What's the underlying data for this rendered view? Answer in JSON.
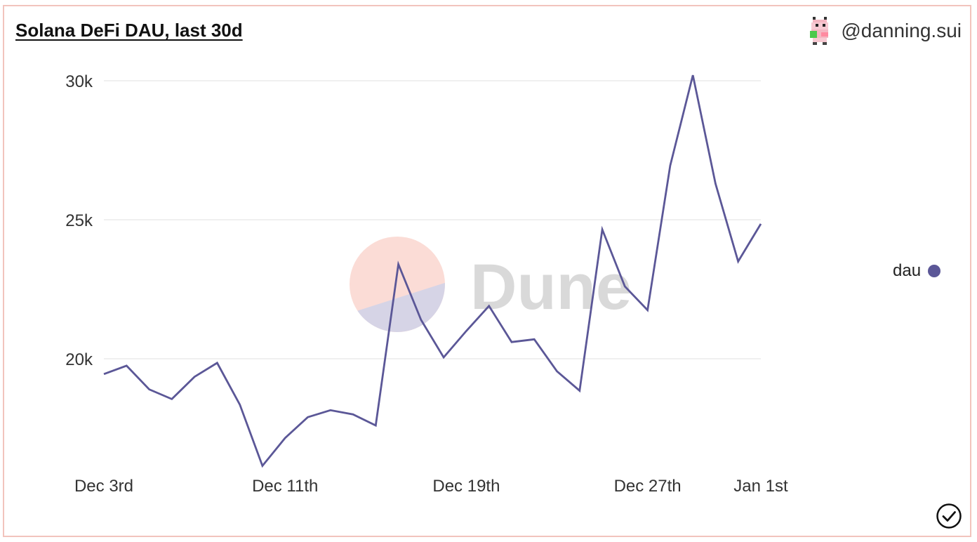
{
  "header": {
    "title": "Solana DeFi DAU, last 30d",
    "author": "@danning.sui"
  },
  "watermark": {
    "text": "Dune"
  },
  "legend": {
    "label": "dau",
    "color": "#5b5797"
  },
  "icons": {
    "avatar": "pixel-avatar-icon",
    "status": "check-circle-icon"
  },
  "chart_data": {
    "type": "line",
    "x_ticks": [
      "Dec 3rd",
      "Dec 11th",
      "Dec 19th",
      "Dec 27th",
      "Jan 1st"
    ],
    "y_ticks": [
      "20k",
      "25k",
      "30k"
    ],
    "y_tick_values": [
      20000,
      25000,
      30000
    ],
    "ylim": [
      15000,
      30500
    ],
    "grid": true,
    "legend_position": "right",
    "series": [
      {
        "name": "dau",
        "color": "#5b5797",
        "values": [
          19450,
          19750,
          18900,
          18550,
          19350,
          19850,
          18350,
          16150,
          17150,
          17900,
          18150,
          18000,
          17600,
          23400,
          21400,
          20050,
          21000,
          21900,
          20600,
          20700,
          19550,
          18850,
          24650,
          22600,
          21750,
          26950,
          30200,
          26300,
          23500,
          24850
        ]
      }
    ]
  }
}
